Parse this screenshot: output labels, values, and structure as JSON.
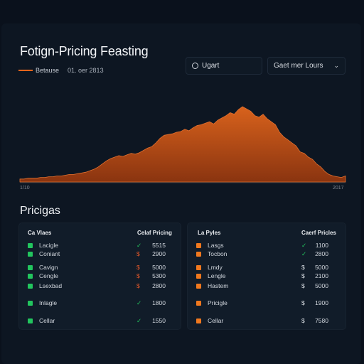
{
  "header": {
    "title": "Fotign-Pricing Feasting",
    "legend_label": "Betause",
    "legend_sub": "01. oer 2813",
    "search_value": "Ugart",
    "select_value": "Gaet mer Lours"
  },
  "colors": {
    "accent": "#e4641c",
    "green": "#22c55e",
    "orange": "#f0781e",
    "bg": "#0a111c"
  },
  "chart_data": {
    "type": "area",
    "x_start_label": "1/10",
    "x_end_label": "2017",
    "values": [
      4,
      4,
      5,
      5,
      5,
      6,
      6,
      7,
      7,
      8,
      8,
      9,
      10,
      10,
      11,
      12,
      13,
      15,
      17,
      20,
      24,
      28,
      31,
      33,
      35,
      34,
      36,
      38,
      37,
      39,
      42,
      45,
      47,
      52,
      58,
      62,
      63,
      64,
      66,
      67,
      70,
      68,
      72,
      75,
      76,
      78,
      80,
      77,
      82,
      85,
      88,
      92,
      90,
      96,
      100,
      97,
      94,
      88,
      86,
      90,
      84,
      80,
      76,
      66,
      60,
      56,
      52,
      48,
      40,
      38,
      33,
      30,
      24,
      20,
      14,
      10,
      8,
      7,
      6,
      8
    ]
  },
  "section_title": "Pricigas",
  "panels": [
    {
      "header_left": "Ca Vlaes",
      "header_right": "Celaf Pricing",
      "rows": [
        {
          "name": "Lacigle",
          "mark": "✓",
          "value": "5515"
        },
        {
          "name": "Coniant",
          "mark": "$",
          "value": "2900"
        },
        {
          "name": "Cavign",
          "mark": "$",
          "value": "5000"
        },
        {
          "name": "Cengle",
          "mark": "$",
          "value": "5300"
        },
        {
          "name": "Lsexbad",
          "mark": "$",
          "value": "2800"
        },
        {
          "name": "Inlagle",
          "mark": "✓",
          "value": "1800"
        },
        {
          "name": "Cellar",
          "mark": "✓",
          "value": "1550"
        }
      ]
    },
    {
      "header_left": "La Pyles",
      "header_right": "Caerf Pricles",
      "rows": [
        {
          "name": "Lasgs",
          "mark": "✓",
          "value": "1100"
        },
        {
          "name": "Tocbon",
          "mark": "✓",
          "value": "2800"
        },
        {
          "name": "Lmdy",
          "mark": "$",
          "value": "5000"
        },
        {
          "name": "Lengle",
          "mark": "$",
          "value": "2100"
        },
        {
          "name": "Hastem",
          "mark": "$",
          "value": "5000"
        },
        {
          "name": "Pricigle",
          "mark": "$",
          "value": "1900"
        },
        {
          "name": "Cellar",
          "mark": "$",
          "value": "7580"
        }
      ]
    }
  ]
}
